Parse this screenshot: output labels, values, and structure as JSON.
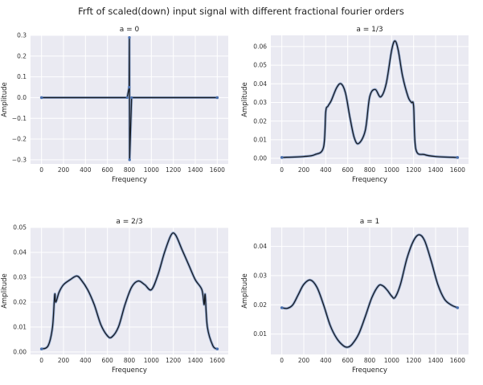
{
  "figure": {
    "title": "Frft of scaled(down) input signal with different fractional fourier orders"
  },
  "chart_data": [
    {
      "type": "line",
      "title": "a = 0",
      "xlabel": "Frequency",
      "ylabel": "Amplitude",
      "xlim": [
        -100,
        1700
      ],
      "ylim": [
        -0.32,
        0.3
      ],
      "xticks": [
        0,
        200,
        400,
        600,
        800,
        1000,
        1200,
        1400,
        1600
      ],
      "yticks": [
        -0.3,
        -0.2,
        -0.1,
        0.0,
        0.1,
        0.2,
        0.3
      ],
      "ytick_labels": [
        "−0.3",
        "−0.2",
        "−0.1",
        "0.0",
        "0.1",
        "0.2",
        "0.3"
      ],
      "grid": true,
      "series": [
        {
          "x": [
            0,
            780,
            798,
            800,
            802,
            820,
            1600
          ],
          "y": [
            0,
            0,
            0.05,
            0.29,
            -0.3,
            0,
            0
          ]
        }
      ]
    },
    {
      "type": "line",
      "title": "a = 1/3",
      "xlabel": "Frequency",
      "ylabel": "Amplitude",
      "xlim": [
        -100,
        1700
      ],
      "ylim": [
        -0.003,
        0.066
      ],
      "xticks": [
        0,
        200,
        400,
        600,
        800,
        1000,
        1200,
        1400,
        1600
      ],
      "yticks": [
        0.0,
        0.01,
        0.02,
        0.03,
        0.04,
        0.05,
        0.06
      ],
      "ytick_labels": [
        "0.00",
        "0.01",
        "0.02",
        "0.03",
        "0.04",
        "0.05",
        "0.06"
      ],
      "grid": true,
      "series": [
        {
          "x": [
            0,
            200,
            300,
            380,
            400,
            420,
            450,
            500,
            540,
            580,
            620,
            660,
            700,
            760,
            800,
            850,
            900,
            950,
            1000,
            1030,
            1060,
            1100,
            1150,
            1180,
            1200,
            1220,
            1300,
            1400,
            1600
          ],
          "y": [
            0.0005,
            0.001,
            0.002,
            0.006,
            0.025,
            0.028,
            0.031,
            0.038,
            0.04,
            0.035,
            0.022,
            0.011,
            0.008,
            0.015,
            0.033,
            0.037,
            0.033,
            0.04,
            0.058,
            0.063,
            0.058,
            0.044,
            0.033,
            0.03,
            0.028,
            0.005,
            0.002,
            0.001,
            0.0005
          ]
        }
      ]
    },
    {
      "type": "line",
      "title": "a = 2/3",
      "xlabel": "Frequency",
      "ylabel": "Amplitude",
      "xlim": [
        -100,
        1700
      ],
      "ylim": [
        -0.001,
        0.05
      ],
      "xticks": [
        0,
        200,
        400,
        600,
        800,
        1000,
        1200,
        1400,
        1600
      ],
      "yticks": [
        0.0,
        0.01,
        0.02,
        0.03,
        0.04,
        0.05
      ],
      "ytick_labels": [
        "0.00",
        "0.01",
        "0.02",
        "0.03",
        "0.04",
        "0.05"
      ],
      "grid": true,
      "series": [
        {
          "x": [
            0,
            60,
            100,
            120,
            130,
            160,
            200,
            260,
            320,
            360,
            420,
            480,
            540,
            600,
            640,
            700,
            760,
            820,
            880,
            940,
            1000,
            1060,
            1120,
            1180,
            1220,
            1280,
            1340,
            1400,
            1460,
            1480,
            1490,
            1510,
            1560,
            1600
          ],
          "y": [
            0.0012,
            0.0025,
            0.01,
            0.023,
            0.02,
            0.024,
            0.027,
            0.029,
            0.0305,
            0.029,
            0.025,
            0.019,
            0.011,
            0.0065,
            0.006,
            0.01,
            0.019,
            0.026,
            0.0285,
            0.027,
            0.025,
            0.031,
            0.04,
            0.047,
            0.047,
            0.041,
            0.035,
            0.029,
            0.025,
            0.019,
            0.023,
            0.01,
            0.0025,
            0.0012
          ]
        }
      ]
    },
    {
      "type": "line",
      "title": "a = 1",
      "xlabel": "Frequency",
      "ylabel": "Amplitude",
      "xlim": [
        -100,
        1700
      ],
      "ylim": [
        0.003,
        0.0465
      ],
      "xticks": [
        0,
        200,
        400,
        600,
        800,
        1000,
        1200,
        1400,
        1600
      ],
      "yticks": [
        0.01,
        0.02,
        0.03,
        0.04
      ],
      "ytick_labels": [
        "0.01",
        "0.02",
        "0.03",
        "0.04"
      ],
      "grid": true,
      "series": [
        {
          "x": [
            0,
            50,
            100,
            150,
            200,
            260,
            320,
            380,
            440,
            500,
            560,
            600,
            640,
            700,
            760,
            820,
            880,
            920,
            960,
            1000,
            1030,
            1080,
            1140,
            1200,
            1250,
            1300,
            1360,
            1420,
            1480,
            1540,
            1600
          ],
          "y": [
            0.019,
            0.0188,
            0.02,
            0.0235,
            0.027,
            0.0285,
            0.026,
            0.02,
            0.013,
            0.0085,
            0.006,
            0.0055,
            0.0065,
            0.01,
            0.016,
            0.0225,
            0.0265,
            0.0265,
            0.025,
            0.023,
            0.0225,
            0.027,
            0.036,
            0.042,
            0.044,
            0.042,
            0.035,
            0.027,
            0.022,
            0.02,
            0.019
          ]
        }
      ]
    }
  ]
}
